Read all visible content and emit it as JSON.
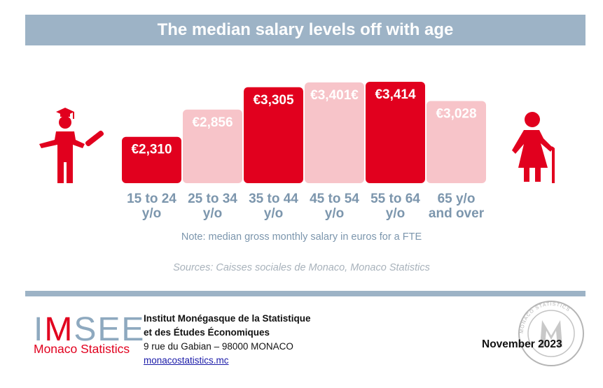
{
  "title": "The median salary levels off with age",
  "chart_data": {
    "type": "bar",
    "categories": [
      "15 to 24 y/o",
      "25 to 34 y/o",
      "35 to 44 y/o",
      "45 to 54 y/o",
      "55 to 64 y/o",
      "65 y/o and over"
    ],
    "category_lines": [
      [
        "15 to 24",
        "y/o"
      ],
      [
        "25 to 34",
        "y/o"
      ],
      [
        "35 to 44",
        "y/o"
      ],
      [
        "45 to 54",
        "y/o"
      ],
      [
        "55 to 64",
        "y/o"
      ],
      [
        "65 y/o",
        "and over"
      ]
    ],
    "values": [
      2310,
      2856,
      3305,
      3401,
      3414,
      3028
    ],
    "value_labels": [
      "€2,310",
      "€2,856",
      "€3,305",
      "€3,401€",
      "€3,414",
      "€3,028"
    ],
    "highlight": [
      true,
      false,
      true,
      false,
      true,
      false
    ],
    "colors": {
      "highlight": "#e1001e",
      "muted": "#f7c4c9",
      "category_text": "#7c96ad"
    },
    "ylim": [
      0,
      3414
    ],
    "grid": false,
    "legend": "none"
  },
  "note": "Note: median gross monthly salary in euros for a FTE",
  "sources": "Sources: Caisses sociales de Monaco, Monaco Statistics",
  "footer": {
    "logo_word": "IMSEE",
    "logo_subtitle": "Monaco Statistics",
    "institute_line1": "Institut Monégasque de la Statistique",
    "institute_line2": "et des Études Économiques",
    "address": "9 rue du Gabian – 98000 MONACO",
    "website": "monacostatistics.mc",
    "date": "November 2023",
    "seal_text": "MONACO STATISTICS"
  },
  "icons": {
    "left": "graduate-student-icon",
    "right": "elderly-person-icon"
  }
}
